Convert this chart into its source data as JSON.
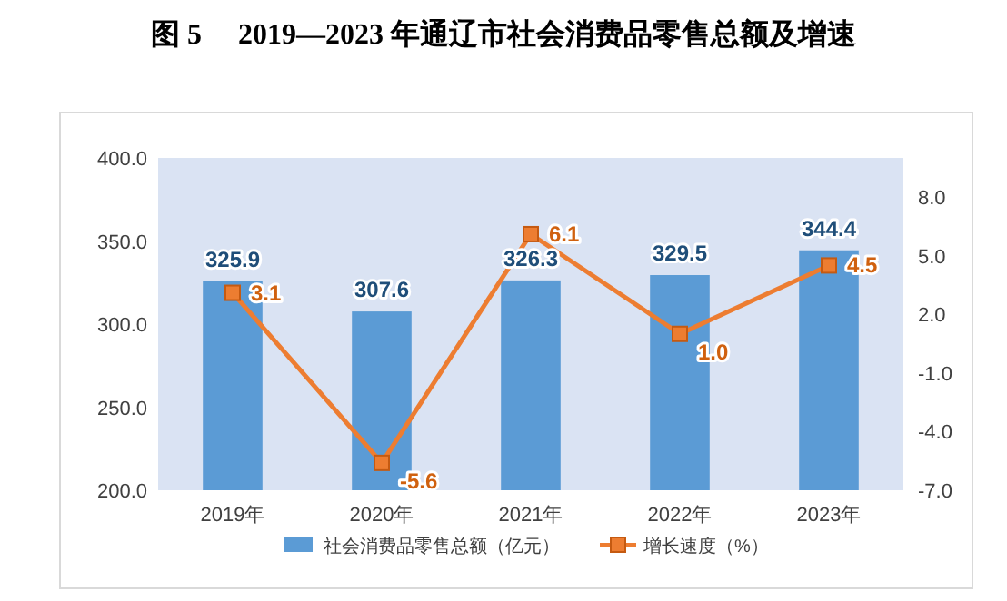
{
  "chart_data": {
    "type": "bar",
    "title": "图 5　 2019—2023 年通辽市社会消费品零售总额及增速",
    "categories": [
      "2019年",
      "2020年",
      "2021年",
      "2022年",
      "2023年"
    ],
    "series": [
      {
        "name": "社会消费品零售总额（亿元）",
        "color": "#5b9bd5",
        "values": [
          325.9,
          307.6,
          326.3,
          329.5,
          344.4
        ]
      },
      {
        "name": "增长速度（%）",
        "type": "line",
        "axis": "y2",
        "color": "#ed7d31",
        "marker": "square",
        "values": [
          3.1,
          -5.6,
          6.1,
          1.0,
          4.5
        ],
        "value_labels": [
          "3.1",
          "-5.6",
          "6.1",
          "1.0",
          "4.5"
        ]
      }
    ],
    "ylim": [
      200,
      400
    ],
    "yticks": [
      {
        "value": 200,
        "label": "200.0"
      },
      {
        "value": 250,
        "label": "250.0"
      },
      {
        "value": 300,
        "label": "300.0"
      },
      {
        "value": 350,
        "label": "350.0"
      },
      {
        "value": 400,
        "label": "400.0"
      }
    ],
    "y2lim": [
      -7,
      10
    ],
    "y2ticks": [
      {
        "value": -7,
        "label": "-7.0"
      },
      {
        "value": -4,
        "label": "-4.0"
      },
      {
        "value": -1,
        "label": "-1.0"
      },
      {
        "value": 2,
        "label": "2.0"
      },
      {
        "value": 5,
        "label": "5.0"
      },
      {
        "value": 8,
        "label": "8.0"
      }
    ],
    "data_labels": true,
    "legend": "bottom"
  }
}
